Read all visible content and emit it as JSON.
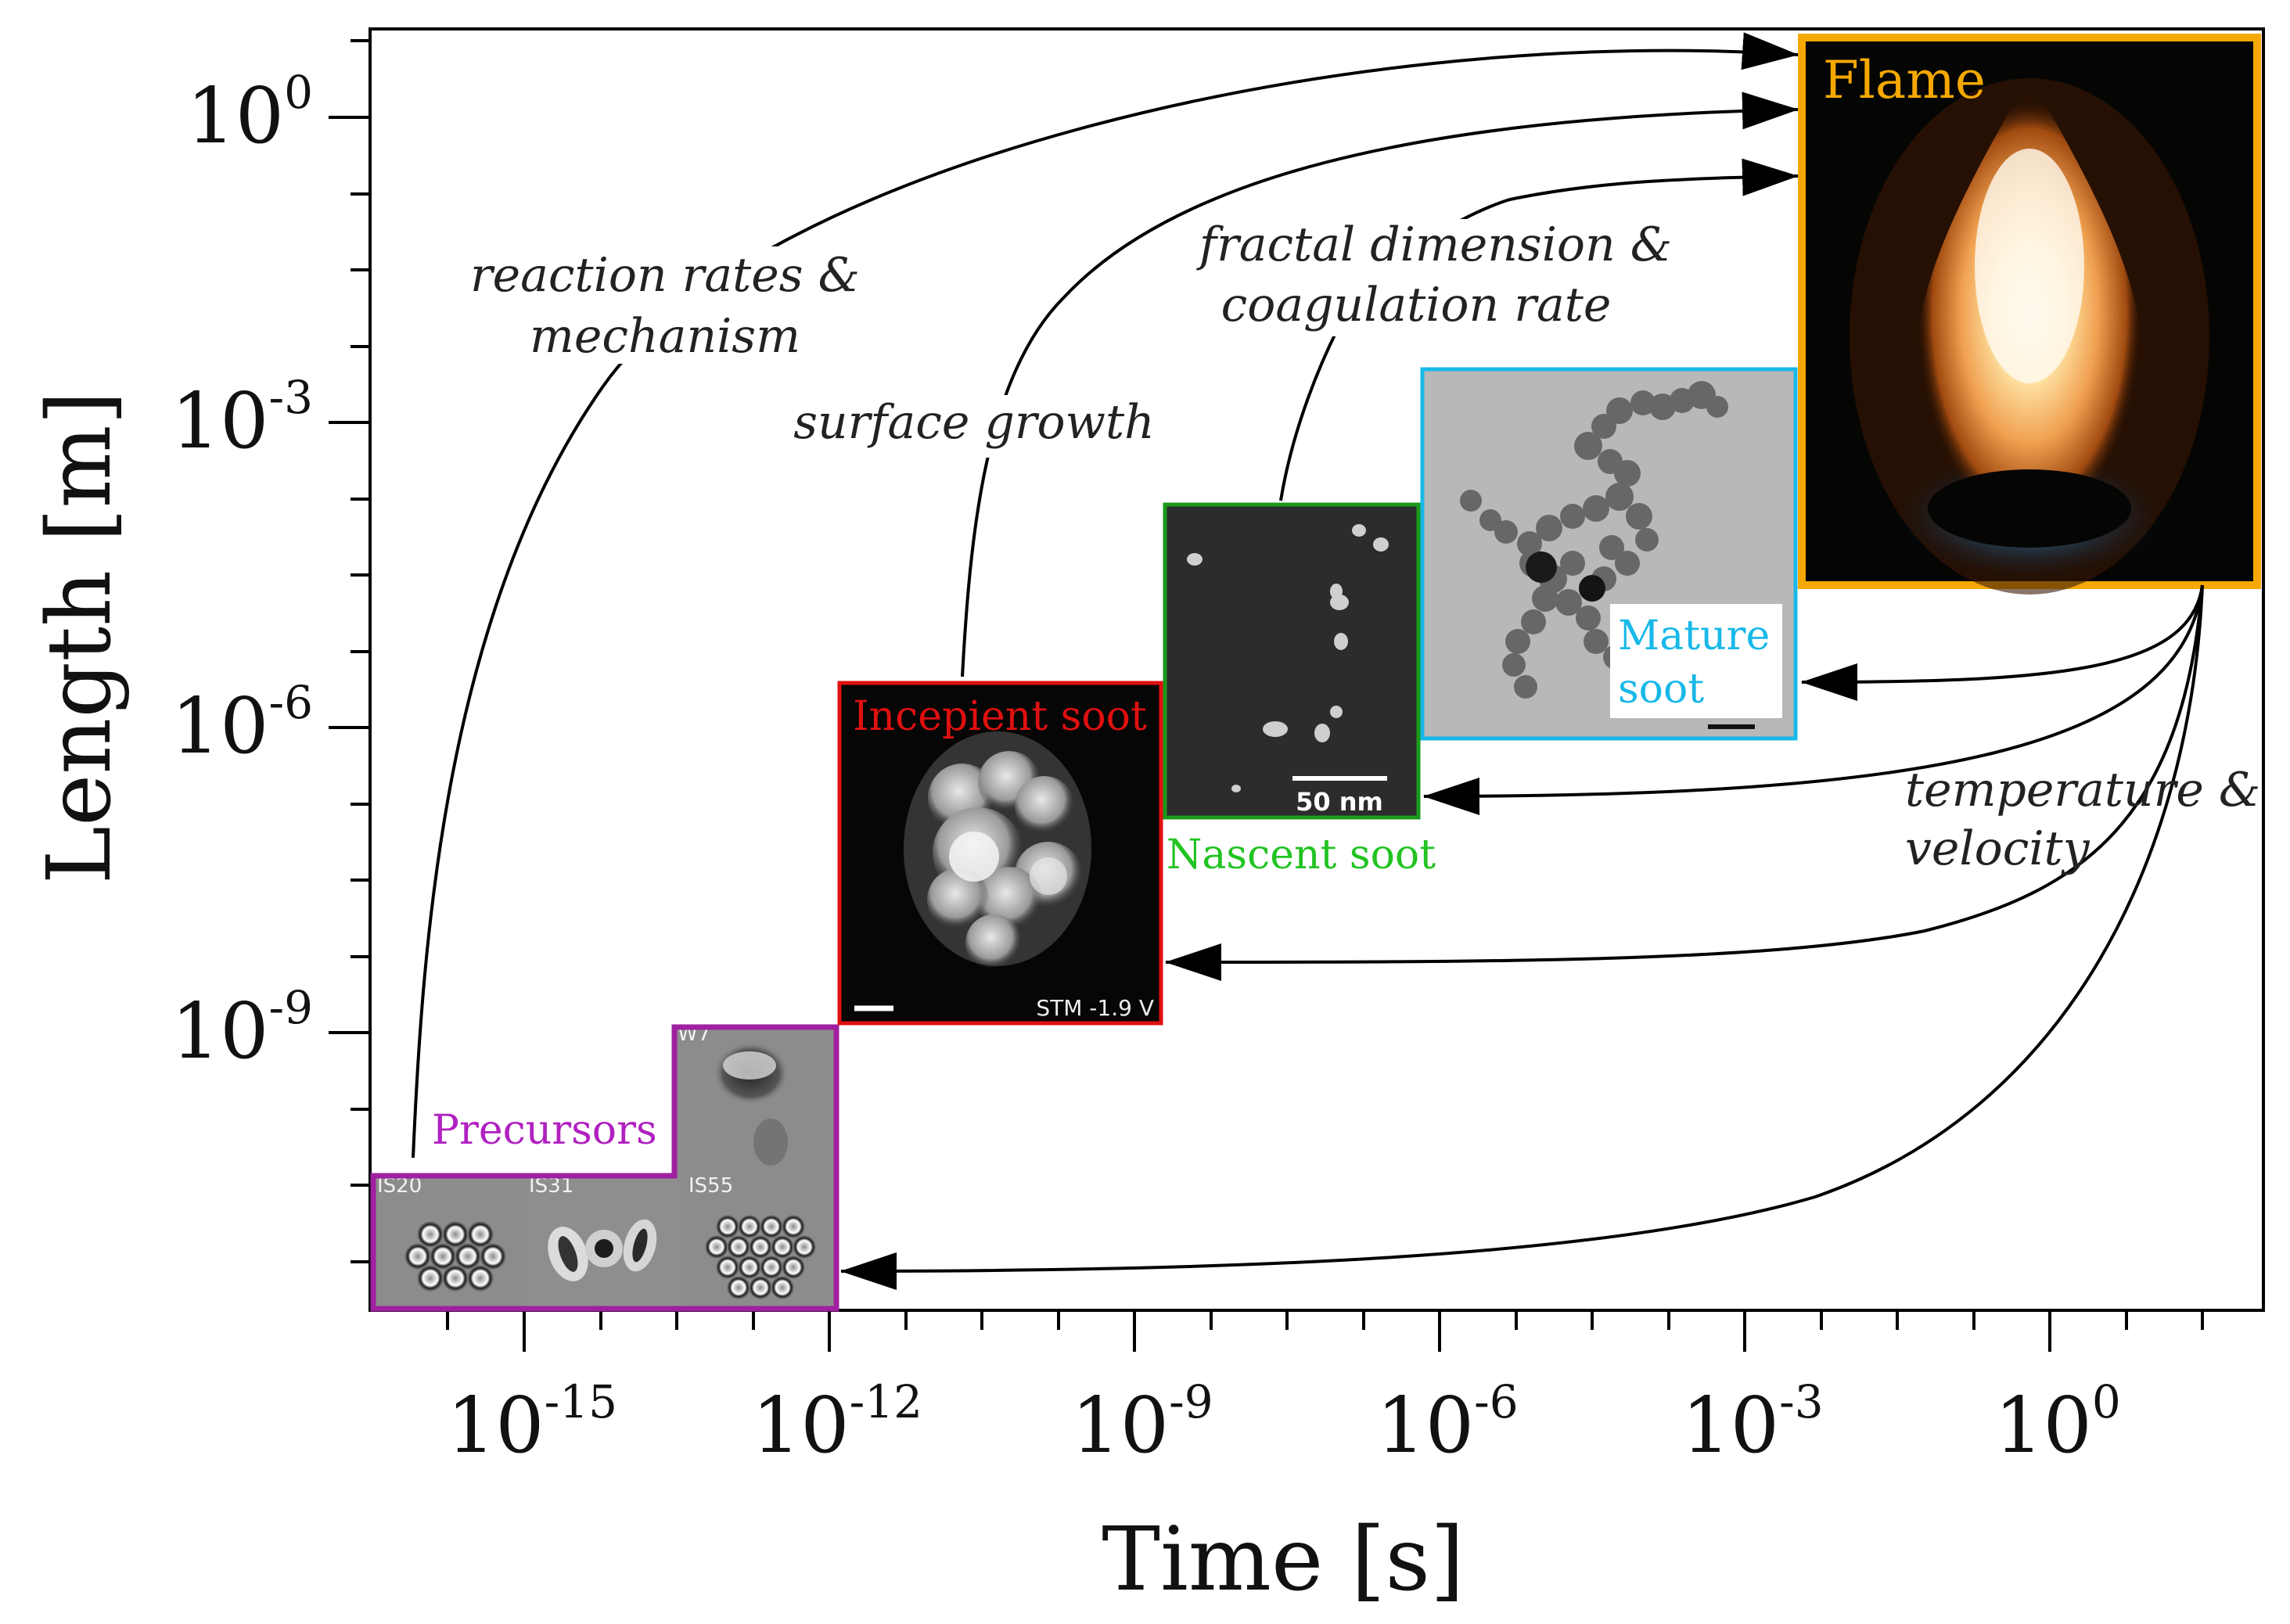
{
  "axes": {
    "x_title": "Time [s]",
    "y_title": "Length [m]",
    "x_ticks": [
      {
        "base": "10",
        "exp": "-15"
      },
      {
        "base": "10",
        "exp": "-12"
      },
      {
        "base": "10",
        "exp": "-9"
      },
      {
        "base": "10",
        "exp": "-6"
      },
      {
        "base": "10",
        "exp": "-3"
      },
      {
        "base": "10",
        "exp": "0"
      }
    ],
    "y_ticks": [
      {
        "base": "10",
        "exp": "0"
      },
      {
        "base": "10",
        "exp": "-3"
      },
      {
        "base": "10",
        "exp": "-6"
      },
      {
        "base": "10",
        "exp": "-9"
      }
    ]
  },
  "stages": {
    "precursors": {
      "label": "Precursors",
      "color": "#a020a0",
      "panels": [
        "IS20",
        "IS31",
        "IS55",
        "W7"
      ]
    },
    "incipient": {
      "label": "Incepient soot",
      "color": "#e01010",
      "scale_text": "STM -1.9 V"
    },
    "nascent": {
      "label": "Nascent soot",
      "color": "#22c322",
      "border_color": "#1a9a1a",
      "scale_text": "50 nm"
    },
    "mature": {
      "label_line1": "Mature",
      "label_line2": "soot",
      "color": "#18b8e8"
    },
    "flame": {
      "label": "Flame",
      "color": "#f5a800"
    }
  },
  "annotations": {
    "reaction_line1": "reaction rates &",
    "reaction_line2": "mechanism",
    "surface": "surface growth",
    "fractal_line1": "fractal dimension &",
    "fractal_line2": "coagulation rate",
    "temperature_line1": "temperature &",
    "temperature_line2": "velocity"
  }
}
